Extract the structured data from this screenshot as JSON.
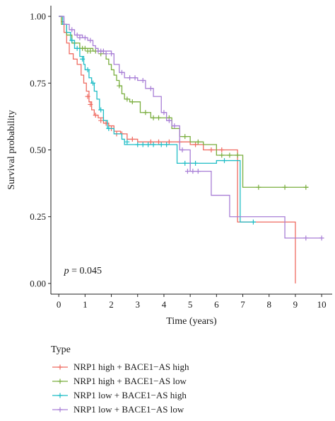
{
  "chart_data": {
    "type": "line",
    "subtype": "kaplan-meier-step",
    "title": "",
    "xlabel": "Time (years)",
    "ylabel": "Survival probability",
    "xlim": [
      -0.3,
      10.4
    ],
    "ylim": [
      -0.04,
      1.04
    ],
    "xticks": [
      0,
      1,
      2,
      3,
      4,
      5,
      6,
      7,
      8,
      9,
      10
    ],
    "yticks": [
      0.0,
      0.25,
      0.5,
      0.75,
      1.0
    ],
    "ytick_labels": [
      "0.00",
      "0.25",
      "0.50",
      "0.75",
      "1.00"
    ],
    "grid": false,
    "annotation": {
      "italic": "p",
      "text": " = 0.045",
      "x": 0.2,
      "y": 0.05
    },
    "legend": {
      "title": "Type",
      "placement": "bottom"
    },
    "series": [
      {
        "name": "NRP1 high + BACE1−AS high",
        "color": "#ef6b61",
        "steps": [
          [
            0,
            1.0
          ],
          [
            0.1,
            0.98
          ],
          [
            0.2,
            0.94
          ],
          [
            0.3,
            0.9
          ],
          [
            0.4,
            0.86
          ],
          [
            0.55,
            0.84
          ],
          [
            0.7,
            0.82
          ],
          [
            0.85,
            0.78
          ],
          [
            0.95,
            0.75
          ],
          [
            1.05,
            0.72
          ],
          [
            1.15,
            0.68
          ],
          [
            1.25,
            0.65
          ],
          [
            1.35,
            0.63
          ],
          [
            1.5,
            0.62
          ],
          [
            1.7,
            0.6
          ],
          [
            1.9,
            0.59
          ],
          [
            2.1,
            0.57
          ],
          [
            2.35,
            0.56
          ],
          [
            2.6,
            0.54
          ],
          [
            3.0,
            0.53
          ],
          [
            5.0,
            0.52
          ],
          [
            5.5,
            0.5
          ],
          [
            6.8,
            0.23
          ],
          [
            8.5,
            0.23
          ],
          [
            9.0,
            0.0
          ]
        ],
        "censors": [
          [
            1.1,
            0.7
          ],
          [
            1.2,
            0.67
          ],
          [
            1.4,
            0.63
          ],
          [
            1.6,
            0.61
          ],
          [
            1.8,
            0.6
          ],
          [
            2.0,
            0.58
          ],
          [
            2.2,
            0.56
          ],
          [
            2.4,
            0.56
          ],
          [
            2.8,
            0.54
          ],
          [
            3.5,
            0.53
          ],
          [
            3.8,
            0.53
          ],
          [
            4.2,
            0.53
          ],
          [
            4.6,
            0.53
          ],
          [
            5.2,
            0.52
          ],
          [
            5.8,
            0.5
          ],
          [
            6.2,
            0.5
          ]
        ]
      },
      {
        "name": "NRP1 high + BACE1−AS low",
        "color": "#7aae3f",
        "steps": [
          [
            0,
            1.0
          ],
          [
            0.1,
            0.97
          ],
          [
            0.3,
            0.93
          ],
          [
            0.5,
            0.9
          ],
          [
            0.8,
            0.88
          ],
          [
            1.3,
            0.87
          ],
          [
            1.7,
            0.86
          ],
          [
            1.8,
            0.84
          ],
          [
            1.9,
            0.82
          ],
          [
            2.0,
            0.8
          ],
          [
            2.1,
            0.78
          ],
          [
            2.2,
            0.76
          ],
          [
            2.3,
            0.74
          ],
          [
            2.4,
            0.71
          ],
          [
            2.5,
            0.69
          ],
          [
            2.7,
            0.68
          ],
          [
            3.1,
            0.64
          ],
          [
            3.5,
            0.62
          ],
          [
            4.3,
            0.58
          ],
          [
            4.6,
            0.55
          ],
          [
            5.0,
            0.53
          ],
          [
            5.5,
            0.52
          ],
          [
            6.0,
            0.48
          ],
          [
            7.0,
            0.36
          ],
          [
            9.5,
            0.36
          ]
        ],
        "censors": [
          [
            0.6,
            0.9
          ],
          [
            0.9,
            0.88
          ],
          [
            1.0,
            0.88
          ],
          [
            1.1,
            0.87
          ],
          [
            1.2,
            0.87
          ],
          [
            1.4,
            0.87
          ],
          [
            1.6,
            0.86
          ],
          [
            2.3,
            0.74
          ],
          [
            2.6,
            0.69
          ],
          [
            2.8,
            0.68
          ],
          [
            3.3,
            0.64
          ],
          [
            3.6,
            0.62
          ],
          [
            3.8,
            0.62
          ],
          [
            4.2,
            0.62
          ],
          [
            4.8,
            0.55
          ],
          [
            5.3,
            0.53
          ],
          [
            6.2,
            0.48
          ],
          [
            6.5,
            0.48
          ],
          [
            6.8,
            0.48
          ],
          [
            7.6,
            0.36
          ],
          [
            8.6,
            0.36
          ],
          [
            9.4,
            0.36
          ]
        ]
      },
      {
        "name": "NRP1 low + BACE1−AS high",
        "color": "#1fbdc6",
        "steps": [
          [
            0,
            1.0
          ],
          [
            0.15,
            0.97
          ],
          [
            0.3,
            0.94
          ],
          [
            0.45,
            0.91
          ],
          [
            0.6,
            0.88
          ],
          [
            0.8,
            0.85
          ],
          [
            0.95,
            0.82
          ],
          [
            1.0,
            0.8
          ],
          [
            1.15,
            0.77
          ],
          [
            1.25,
            0.75
          ],
          [
            1.35,
            0.72
          ],
          [
            1.45,
            0.69
          ],
          [
            1.55,
            0.65
          ],
          [
            1.7,
            0.61
          ],
          [
            1.85,
            0.58
          ],
          [
            2.1,
            0.56
          ],
          [
            2.4,
            0.54
          ],
          [
            2.5,
            0.52
          ],
          [
            4.3,
            0.52
          ],
          [
            4.5,
            0.45
          ],
          [
            6.0,
            0.46
          ],
          [
            6.8,
            0.46
          ],
          [
            6.9,
            0.23
          ],
          [
            7.5,
            0.23
          ]
        ],
        "censors": [
          [
            0.5,
            0.91
          ],
          [
            0.7,
            0.88
          ],
          [
            0.9,
            0.84
          ],
          [
            1.1,
            0.8
          ],
          [
            1.3,
            0.75
          ],
          [
            1.6,
            0.65
          ],
          [
            1.9,
            0.58
          ],
          [
            2.6,
            0.53
          ],
          [
            3.0,
            0.52
          ],
          [
            3.2,
            0.52
          ],
          [
            3.4,
            0.52
          ],
          [
            3.6,
            0.52
          ],
          [
            3.9,
            0.52
          ],
          [
            4.1,
            0.52
          ],
          [
            4.8,
            0.45
          ],
          [
            5.0,
            0.45
          ],
          [
            5.2,
            0.45
          ],
          [
            6.3,
            0.46
          ],
          [
            7.4,
            0.23
          ]
        ]
      },
      {
        "name": "NRP1 low + BACE1−AS low",
        "color": "#a87ed6",
        "steps": [
          [
            0,
            1.0
          ],
          [
            0.2,
            0.97
          ],
          [
            0.4,
            0.95
          ],
          [
            0.6,
            0.93
          ],
          [
            0.9,
            0.92
          ],
          [
            1.1,
            0.91
          ],
          [
            1.3,
            0.89
          ],
          [
            1.4,
            0.88
          ],
          [
            1.5,
            0.87
          ],
          [
            2.0,
            0.86
          ],
          [
            2.1,
            0.82
          ],
          [
            2.3,
            0.79
          ],
          [
            2.5,
            0.77
          ],
          [
            3.0,
            0.76
          ],
          [
            3.3,
            0.73
          ],
          [
            3.6,
            0.7
          ],
          [
            3.9,
            0.64
          ],
          [
            4.1,
            0.61
          ],
          [
            4.3,
            0.59
          ],
          [
            4.6,
            0.5
          ],
          [
            5.0,
            0.42
          ],
          [
            5.6,
            0.42
          ],
          [
            5.8,
            0.33
          ],
          [
            6.5,
            0.25
          ],
          [
            8.5,
            0.25
          ],
          [
            8.6,
            0.17
          ],
          [
            10.0,
            0.17
          ]
        ],
        "censors": [
          [
            0.5,
            0.95
          ],
          [
            0.7,
            0.93
          ],
          [
            0.8,
            0.92
          ],
          [
            1.0,
            0.92
          ],
          [
            1.2,
            0.91
          ],
          [
            1.5,
            0.87
          ],
          [
            1.6,
            0.87
          ],
          [
            1.7,
            0.87
          ],
          [
            1.8,
            0.86
          ],
          [
            2.0,
            0.86
          ],
          [
            2.4,
            0.79
          ],
          [
            2.7,
            0.77
          ],
          [
            2.9,
            0.77
          ],
          [
            3.2,
            0.76
          ],
          [
            3.5,
            0.73
          ],
          [
            4.0,
            0.64
          ],
          [
            4.2,
            0.61
          ],
          [
            4.4,
            0.59
          ],
          [
            4.7,
            0.5
          ],
          [
            4.9,
            0.42
          ],
          [
            5.1,
            0.42
          ],
          [
            5.3,
            0.42
          ],
          [
            9.4,
            0.17
          ],
          [
            10.0,
            0.17
          ]
        ]
      }
    ]
  }
}
